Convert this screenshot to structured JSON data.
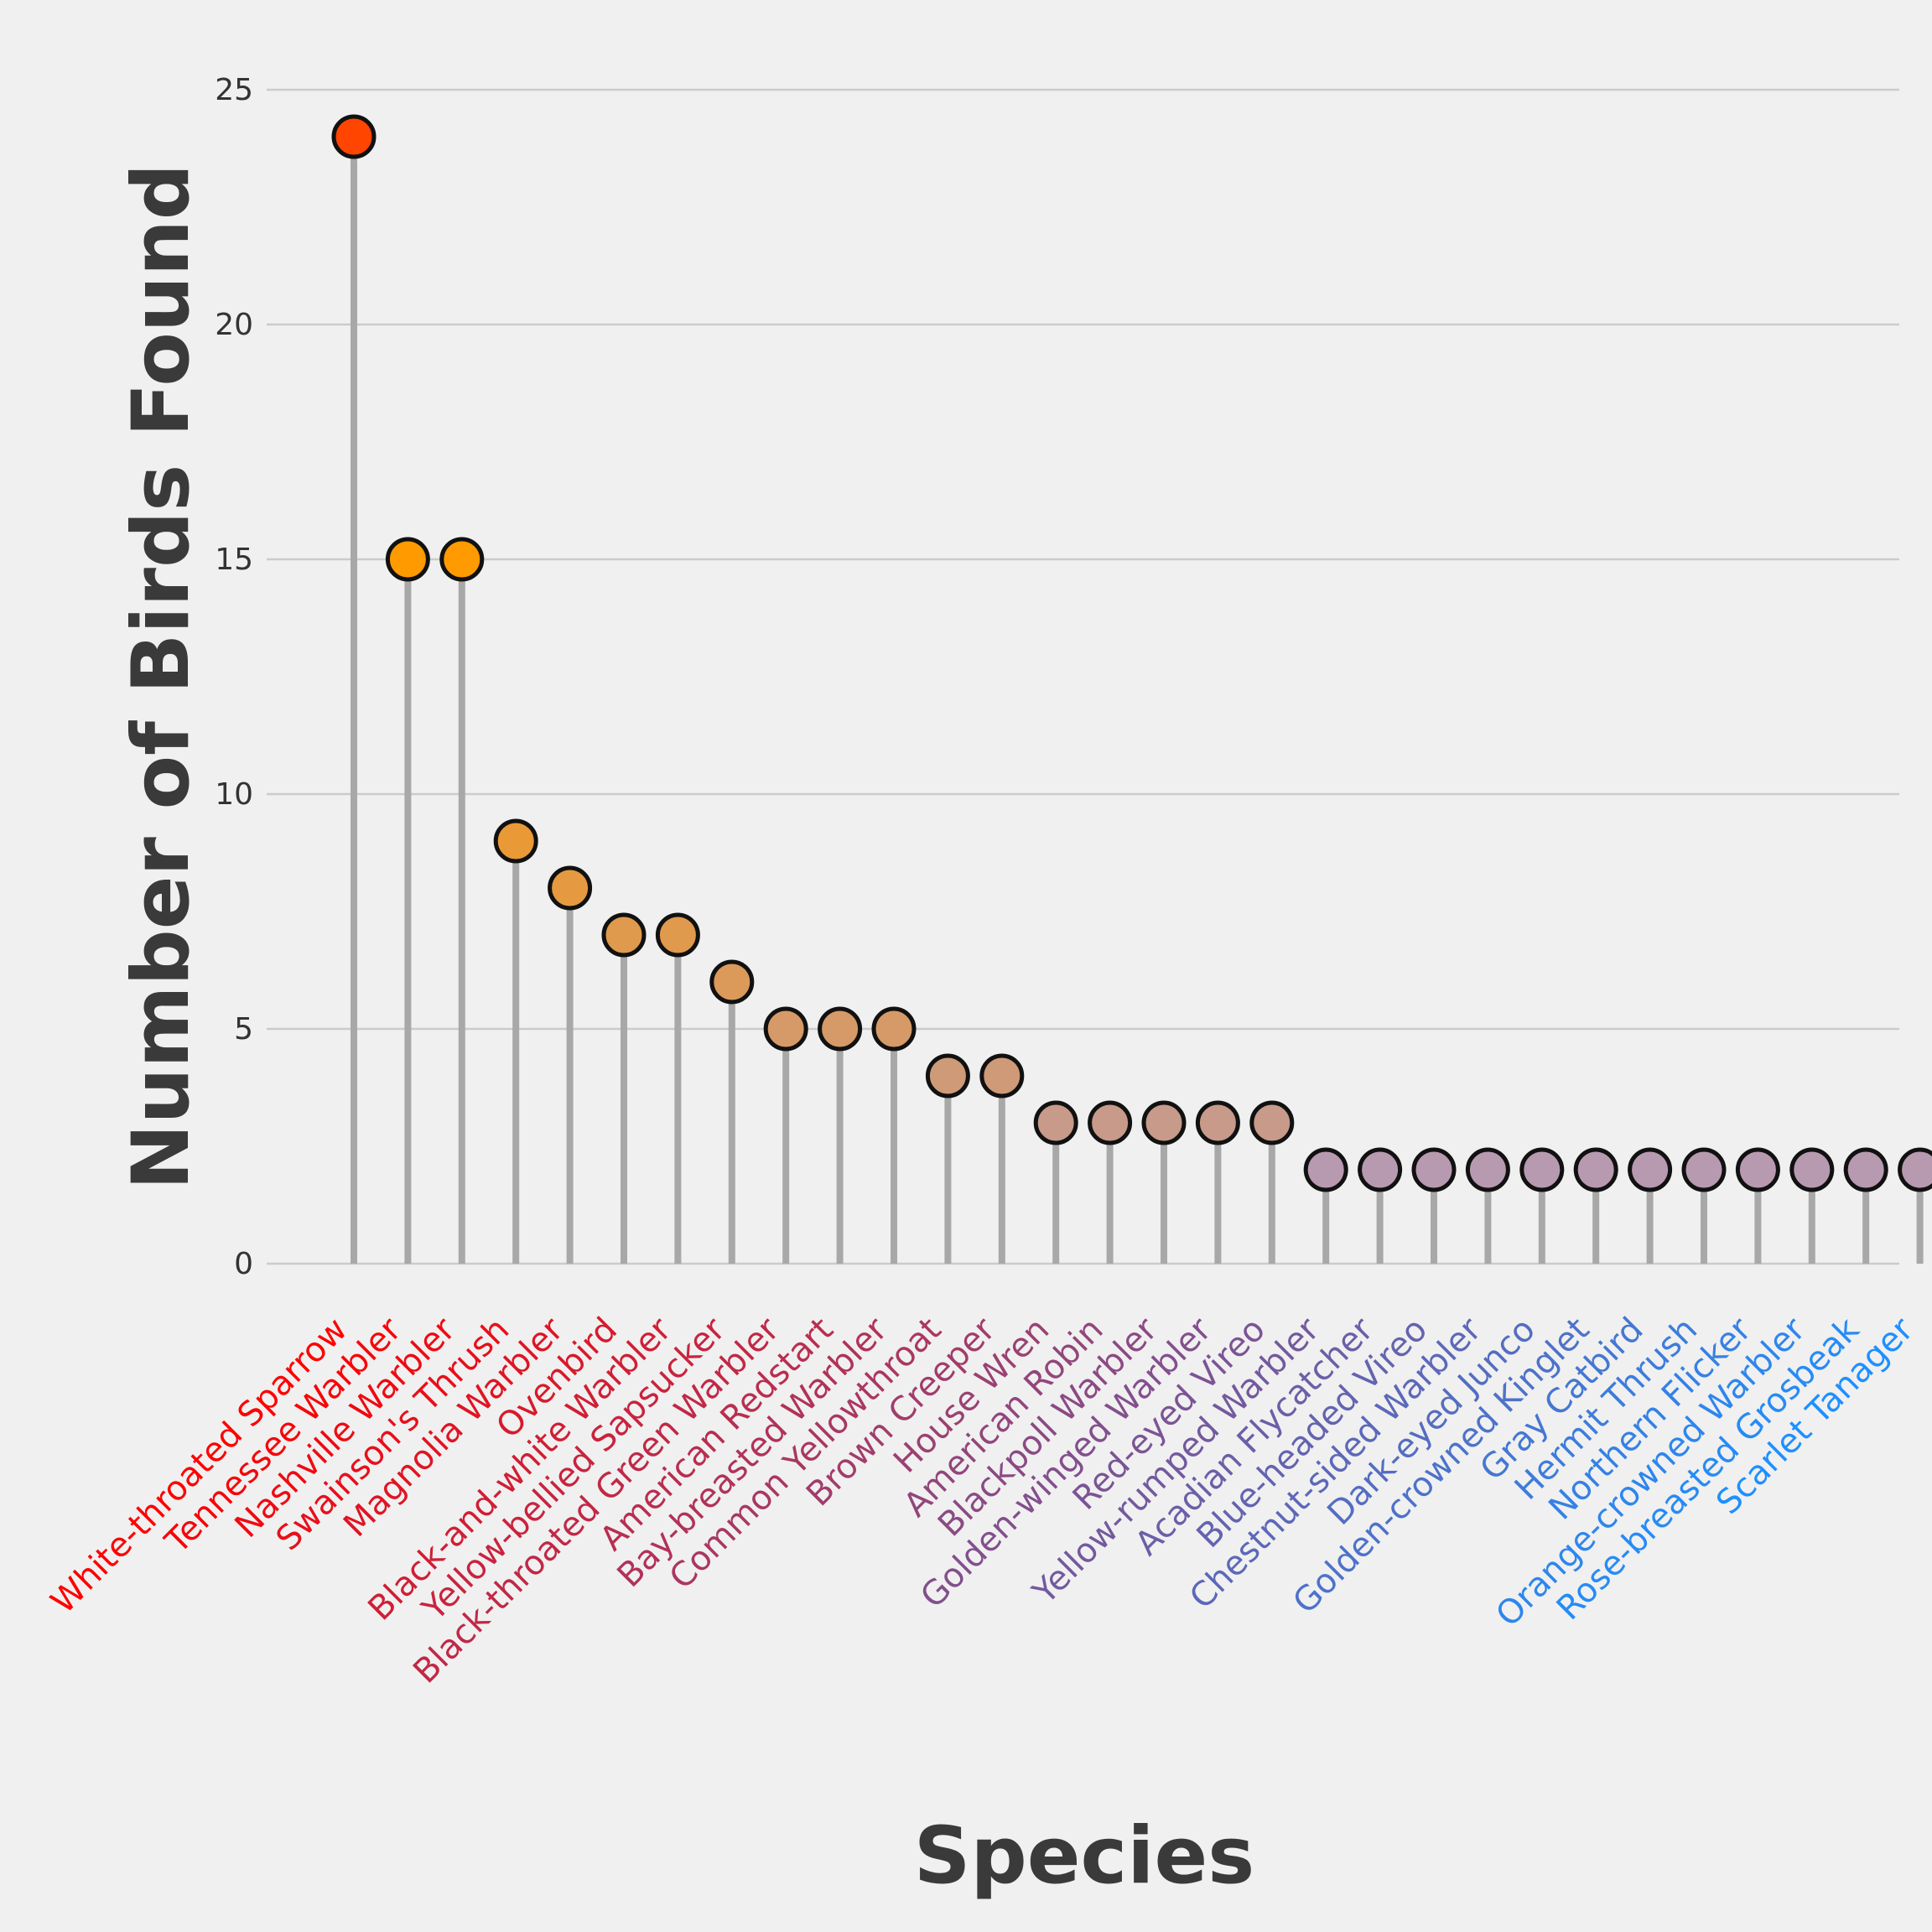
{
  "chart_data": {
    "type": "lollipop",
    "title": "",
    "xlabel": "Species",
    "ylabel": "Number of Birds Found",
    "ylim": [
      0,
      25
    ],
    "yticks": [
      0,
      5,
      10,
      15,
      20,
      25
    ],
    "grid": "horizontal",
    "legend": "none",
    "categories": [
      "White-throated Sparrow",
      "Tennessee Warbler",
      "Nashville Warbler",
      "Swainson's Thrush",
      "Magnolia Warbler",
      "Ovenbird",
      "Black-and-white Warbler",
      "Yellow-bellied Sapsucker",
      "Black-throated Green Warbler",
      "American Redstart",
      "Bay-breasted Warbler",
      "Common Yellowthroat",
      "Brown Creeper",
      "House Wren",
      "American Robin",
      "Blackpoll Warbler",
      "Golden-winged Warbler",
      "Red-eyed Vireo",
      "Yellow-rumped Warbler",
      "Acadian Flycatcher",
      "Blue-headed Vireo",
      "Chestnut-sided Warbler",
      "Dark-eyed Junco",
      "Golden-crowned Kinglet",
      "Gray Catbird",
      "Hermit Thrush",
      "Northern Flicker",
      "Orange-crowned Warbler",
      "Rose-breasted Grosbeak",
      "Scarlet Tanager"
    ],
    "values": [
      24,
      15,
      15,
      9,
      8,
      7,
      7,
      6,
      5,
      5,
      5,
      4,
      4,
      3,
      3,
      3,
      3,
      3,
      2,
      2,
      2,
      2,
      2,
      2,
      2,
      2,
      2,
      2,
      2,
      2
    ],
    "colors": {
      "background": "#f0f0f0",
      "stem": "#a8a8a8",
      "marker_edge": "#111111",
      "label_start": "#ff0000",
      "label_end": "#1e90ff",
      "marker_high": "#ff4500",
      "marker_low": "#b89ab0"
    }
  }
}
